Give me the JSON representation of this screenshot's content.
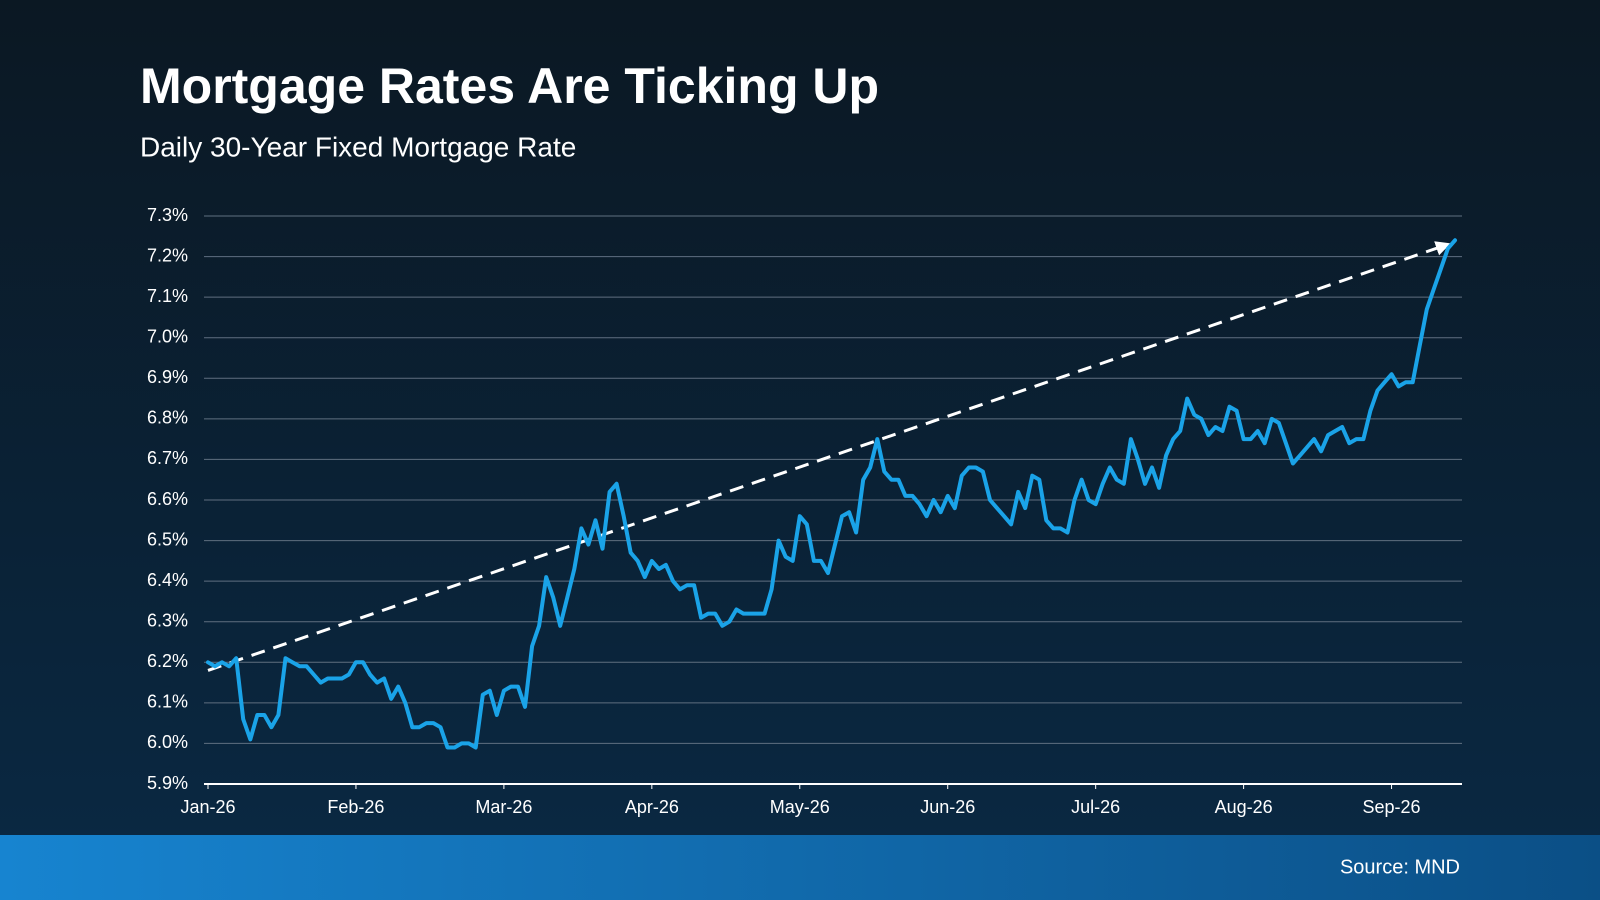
{
  "chart_data": {
    "type": "line",
    "title": "Mortgage Rates Are Ticking Up",
    "subtitle": "Daily 30-Year Fixed Mortgage Rate",
    "source": "Source: MND",
    "color": "#1aa3e8",
    "values": [
      6.2,
      6.19,
      6.2,
      6.19,
      6.21,
      6.06,
      6.01,
      6.07,
      6.07,
      6.04,
      6.07,
      6.21,
      6.2,
      6.19,
      6.19,
      6.17,
      6.15,
      6.16,
      6.16,
      6.16,
      6.17,
      6.2,
      6.2,
      6.17,
      6.15,
      6.16,
      6.11,
      6.14,
      6.1,
      6.04,
      6.04,
      6.05,
      6.05,
      6.04,
      5.99,
      5.99,
      6.0,
      6.0,
      5.99,
      6.12,
      6.13,
      6.07,
      6.13,
      6.14,
      6.14,
      6.09,
      6.24,
      6.29,
      6.41,
      6.36,
      6.29,
      6.36,
      6.43,
      6.53,
      6.49,
      6.55,
      6.48,
      6.62,
      6.64,
      6.56,
      6.47,
      6.45,
      6.41,
      6.45,
      6.43,
      6.44,
      6.4,
      6.38,
      6.39,
      6.39,
      6.31,
      6.32,
      6.32,
      6.29,
      6.3,
      6.33,
      6.32,
      6.32,
      6.32,
      6.32,
      6.38,
      6.5,
      6.46,
      6.45,
      6.56,
      6.54,
      6.45,
      6.45,
      6.42,
      6.49,
      6.56,
      6.57,
      6.52,
      6.65,
      6.68,
      6.75,
      6.67,
      6.65,
      6.65,
      6.61,
      6.61,
      6.59,
      6.56,
      6.6,
      6.57,
      6.61,
      6.58,
      6.66,
      6.68,
      6.68,
      6.67,
      6.6,
      6.58,
      6.56,
      6.54,
      6.62,
      6.58,
      6.66,
      6.65,
      6.55,
      6.53,
      6.53,
      6.52,
      6.6,
      6.65,
      6.6,
      6.59,
      6.64,
      6.68,
      6.65,
      6.64,
      6.75,
      6.7,
      6.64,
      6.68,
      6.63,
      6.71,
      6.75,
      6.77,
      6.85,
      6.81,
      6.8,
      6.76,
      6.78,
      6.77,
      6.83,
      6.82,
      6.75,
      6.75,
      6.77,
      6.74,
      6.8,
      6.79,
      6.74,
      6.69,
      6.71,
      6.73,
      6.75,
      6.72,
      6.76,
      6.77,
      6.78,
      6.74,
      6.75,
      6.75,
      6.82,
      6.87,
      6.89,
      6.91,
      6.88,
      6.89,
      6.89,
      6.98,
      7.07,
      7.12,
      7.17,
      7.22,
      7.24
    ],
    "xlim": [
      0,
      178
    ],
    "xticks": [
      {
        "value": 0,
        "label": "Jan-26"
      },
      {
        "value": 21,
        "label": "Feb-26"
      },
      {
        "value": 42,
        "label": "Mar-26"
      },
      {
        "value": 63,
        "label": "Apr-26"
      },
      {
        "value": 84,
        "label": "May-26"
      },
      {
        "value": 105,
        "label": "Jun-26"
      },
      {
        "value": 126,
        "label": "Jul-26"
      },
      {
        "value": 147,
        "label": "Aug-26"
      },
      {
        "value": 168,
        "label": "Sep-26"
      }
    ],
    "ylim": [
      5.9,
      7.3
    ],
    "yticks": [
      {
        "value": 5.9,
        "label": "5.9%"
      },
      {
        "value": 6.0,
        "label": "6.0%"
      },
      {
        "value": 6.1,
        "label": "6.1%"
      },
      {
        "value": 6.2,
        "label": "6.2%"
      },
      {
        "value": 6.3,
        "label": "6.3%"
      },
      {
        "value": 6.4,
        "label": "6.4%"
      },
      {
        "value": 6.5,
        "label": "6.5%"
      },
      {
        "value": 6.6,
        "label": "6.6%"
      },
      {
        "value": 6.7,
        "label": "6.7%"
      },
      {
        "value": 6.8,
        "label": "6.8%"
      },
      {
        "value": 6.9,
        "label": "6.9%"
      },
      {
        "value": 7.0,
        "label": "7.0%"
      },
      {
        "value": 7.1,
        "label": "7.1%"
      },
      {
        "value": 7.2,
        "label": "7.2%"
      },
      {
        "value": 7.3,
        "label": "7.3%"
      }
    ],
    "grid": true,
    "trend": {
      "x": [
        0,
        176
      ],
      "y": [
        6.18,
        7.23
      ],
      "color": "#ffffff"
    }
  }
}
